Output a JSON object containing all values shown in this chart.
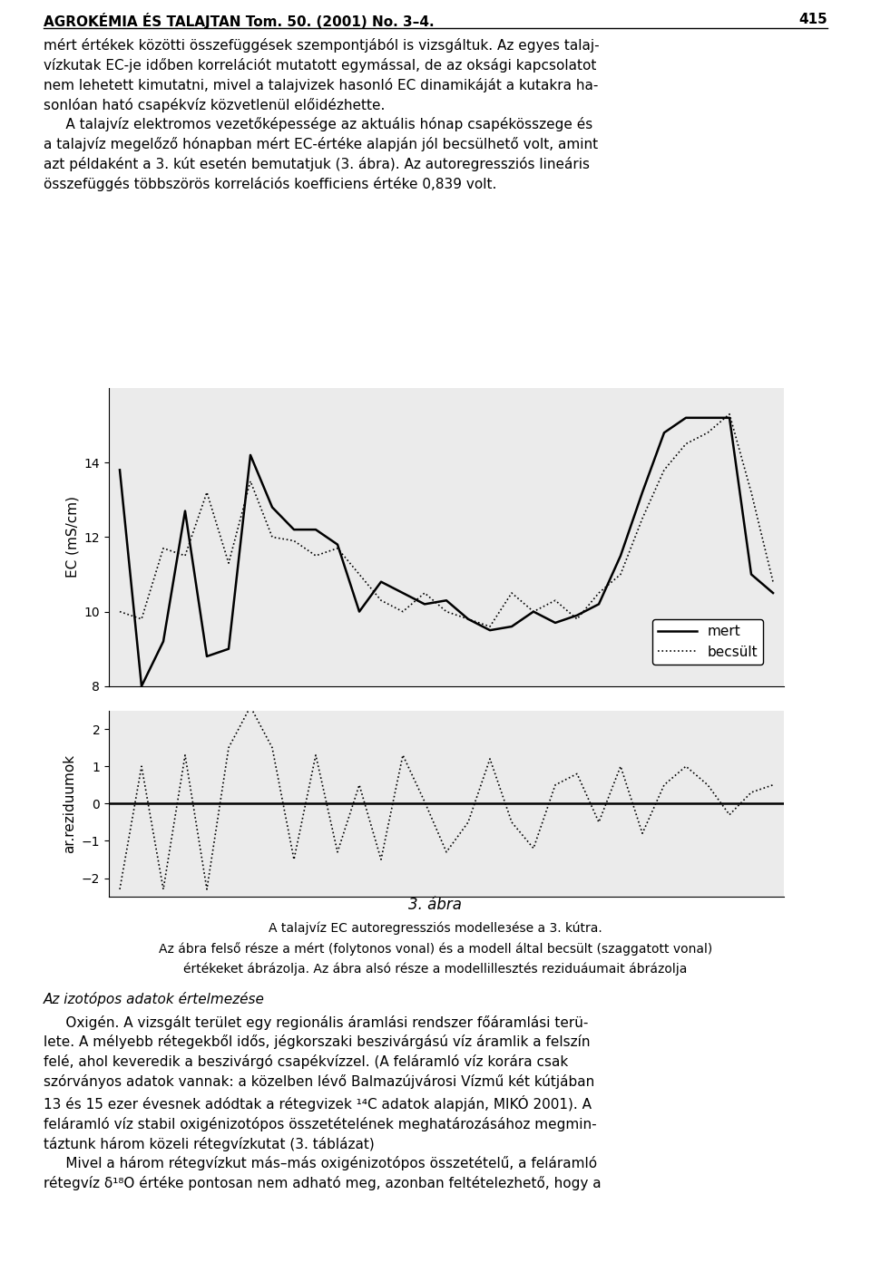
{
  "mert": [
    13.8,
    8.0,
    9.2,
    12.7,
    8.8,
    9.0,
    14.2,
    12.8,
    12.2,
    12.2,
    11.8,
    10.0,
    10.8,
    10.5,
    10.2,
    10.3,
    9.8,
    9.5,
    9.6,
    10.0,
    9.7,
    9.9,
    10.2,
    11.5,
    13.2,
    14.8,
    15.2,
    15.2,
    15.2,
    11.0,
    10.5
  ],
  "becsult": [
    10.0,
    9.8,
    11.7,
    11.5,
    13.2,
    11.3,
    13.5,
    12.0,
    11.9,
    11.5,
    11.7,
    11.0,
    10.3,
    10.0,
    10.5,
    10.0,
    9.8,
    9.6,
    10.5,
    10.0,
    10.3,
    9.8,
    10.5,
    11.0,
    12.5,
    13.8,
    14.5,
    14.8,
    15.3,
    13.2,
    10.8
  ],
  "resid": [
    -2.3,
    1.0,
    -2.3,
    1.3,
    -2.3,
    1.5,
    2.6,
    1.5,
    -1.5,
    1.3,
    -1.3,
    0.5,
    -1.5,
    1.3,
    0.05,
    -1.3,
    -0.5,
    1.2,
    -0.5,
    -1.2,
    0.5,
    0.8,
    -0.5,
    1.0,
    -0.8,
    0.5,
    1.0,
    0.5,
    -0.3,
    0.3,
    0.5
  ],
  "ec_ylim": [
    8,
    16
  ],
  "ec_yticks": [
    8,
    10,
    12,
    14
  ],
  "resid_ylim": [
    -2.5,
    2.5
  ],
  "resid_yticks": [
    -2,
    -1,
    0,
    1,
    2
  ],
  "ylabel_top": "EC (mS/cm)",
  "ylabel_bottom": "ar.reziduumok",
  "legend_labels": [
    "mert",
    "becsült"
  ],
  "caption_line1": "3. ábra",
  "caption_line2": "A talajvíz EC autoregressziós modellезése a 3. kútra.",
  "caption_line3": "Az ábra felső része a mért (folytonos vonal) és a modell által becsült (szaggatott vonal)",
  "caption_line4": "értékeket ábrázolja. Az ábra alsó része a modellillesztés reziduáumait ábrázolja",
  "solid_color": "#000000",
  "dotted_color": "#000000",
  "bg_color": "#ffffff",
  "plot_bg": "#ebebeb",
  "header_title": "AGROKÉMIA ÉS TALAJTAN Tom. 50. (2001) No. 3–4.",
  "header_page": "415",
  "body_text_1": "mért értékek közötti összefüggések szempontjából is vizsgáltuk. Az egyes talaj-\nvízkutak EC-je időben korrelációt mutatott egymással, de az oksági kapcsolatot\nnem lehetett kimutatni, mivel a talajvizek hasonló EC dinamikáját a kutakra ha-\nsonlóan ható csapékvíz közvetlenül előidézhette.\n     A talajvíz elektromos vezetőképessége az aktuális hónap csapékösszege és\na talajvíz megelőző hónapban mért EC-értéke alapján jól becsülhető volt, amint\nazt példaként a 3. kút esetén bemutatjuk (3. ábra). Az autoregressziós lineáris\nösszefüggés többszörös korrelációs koefficiens értéke 0,839 volt.",
  "bottom_section_title": "Az izotópos adatok értelmezése",
  "bottom_text": "     Oxigén. A vizsgált terület egy regionális áramlási rendszer főáramlási terü-\nlete. A mélyebb rétegekből idős, jégkorszaki beszivárgású víz áramlik a felszín\nfelé, ahol keveredik a beszivárgó csapékvízzel. (A feláramló víz korára csak\nszórványos adatok vannak: a közelben lévő Balmazújvárosi Vízmű két kútjában\n13 és 15 ezer évesnek adódtak a rétegvizek ¹⁴C adatok alapján, MIKÓ 2001). A\nfeláramló víz stabil oxigénizotópos összetételének meghatározásához megmin-\ntáztunk három közeli rétegvízkutat (3. táblázat)\n     Mivel a három rétegvízkut más–más oxigénizotópos összetételű, a feláramló\nrétegvíz δ¹⁸O értéke pontosan nem adható meg, azonban feltételezhető, hogy a"
}
